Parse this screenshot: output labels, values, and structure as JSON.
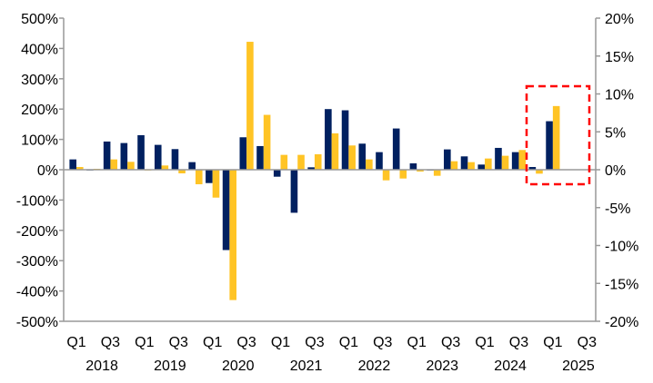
{
  "chart_data": {
    "type": "bar",
    "title": "",
    "xlabel": "",
    "ylabel": "",
    "grid": false,
    "legend": "none",
    "ylim": [
      -500,
      500
    ],
    "y_ticks": [
      "500%",
      "400%",
      "300%",
      "200%",
      "100%",
      "0%",
      "-100%",
      "-200%",
      "-300%",
      "-400%",
      "-500%"
    ],
    "y2lim": [
      -20,
      20
    ],
    "y2_ticks": [
      "20%",
      "15%",
      "10%",
      "5%",
      "0%",
      "-5%",
      "-10%",
      "-15%",
      "-20%"
    ],
    "categories": [
      "Q1 2018",
      "Q2 2018",
      "Q3 2018",
      "Q4 2018",
      "Q1 2019",
      "Q2 2019",
      "Q3 2019",
      "Q4 2019",
      "Q1 2020",
      "Q2 2020",
      "Q3 2020",
      "Q4 2020",
      "Q1 2021",
      "Q2 2021",
      "Q3 2021",
      "Q4 2021",
      "Q1 2022",
      "Q2 2022",
      "Q3 2022",
      "Q4 2022",
      "Q1 2023",
      "Q2 2023",
      "Q3 2023",
      "Q4 2023",
      "Q1 2024",
      "Q2 2024",
      "Q3 2024",
      "Q4 2024",
      "Q1 2025",
      "Q2 2025",
      "Q3 2025"
    ],
    "x_tick_labels": [
      "Q1",
      "Q3",
      "Q1",
      "Q3",
      "Q1",
      "Q3",
      "Q1",
      "Q3",
      "Q1",
      "Q3",
      "Q1",
      "Q3",
      "Q1",
      "Q3",
      "Q1",
      "Q3"
    ],
    "x_year_labels": [
      "2018",
      "2019",
      "2020",
      "2021",
      "2022",
      "2023",
      "2024",
      "2025"
    ],
    "series": [
      {
        "color": "#002060",
        "axis": "left",
        "values": [
          34,
          0,
          93,
          88,
          114,
          82,
          68,
          25,
          -44,
          -265,
          107,
          78,
          -23,
          -142,
          8,
          200,
          196,
          86,
          58,
          136,
          21,
          0,
          67,
          44,
          17,
          72,
          58,
          9,
          160,
          null,
          null
        ]
      },
      {
        "color": "#FFC425",
        "axis": "left",
        "values": [
          9,
          3,
          34,
          26,
          0,
          14,
          -12,
          -48,
          -92,
          -430,
          422,
          181,
          49,
          49,
          51,
          120,
          80,
          34,
          -35,
          -29,
          -6,
          -20,
          28,
          25,
          37,
          46,
          65,
          -13,
          210,
          null,
          null
        ]
      }
    ],
    "annotations": [
      {
        "type": "dashed-box",
        "color": "#FF0000",
        "covers": [
          "Q4 2024",
          "Q1 2025",
          "Q2 2025"
        ]
      }
    ]
  }
}
